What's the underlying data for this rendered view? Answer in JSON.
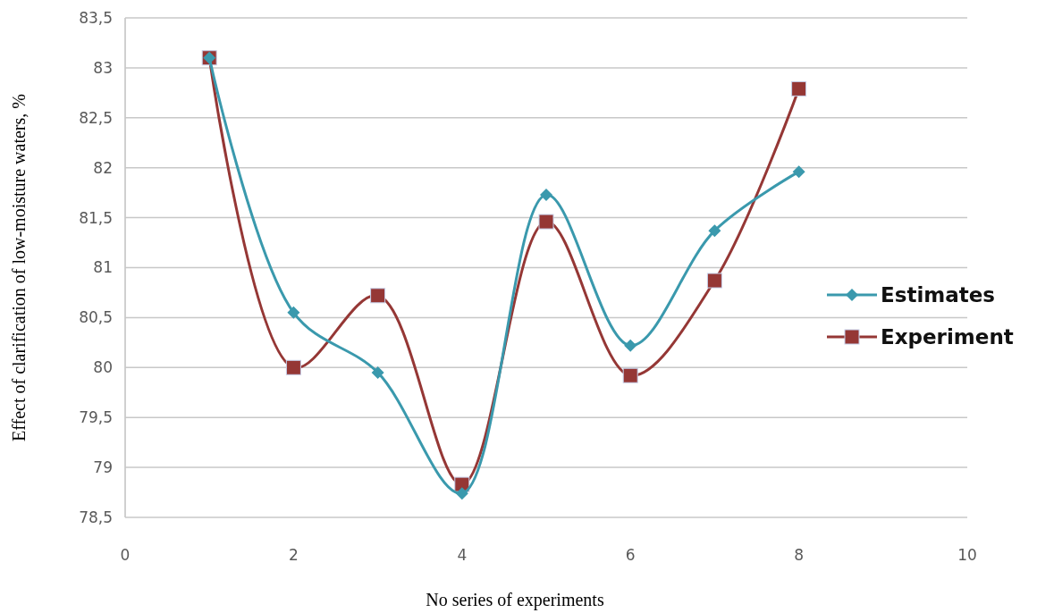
{
  "chart_data": {
    "type": "line",
    "xlabel": "No series of experiments",
    "ylabel": "Effect of clarification of low-moisture waters, %",
    "x": [
      1,
      2,
      3,
      4,
      5,
      6,
      7,
      8
    ],
    "series": [
      {
        "name": "Estimates",
        "color": "#3a99ad",
        "marker": "diamond",
        "values": [
          83.1,
          80.55,
          79.95,
          78.74,
          81.73,
          80.22,
          81.37,
          81.96
        ]
      },
      {
        "name": "Experiment",
        "color": "#953735",
        "marker": "square",
        "values": [
          83.1,
          80.0,
          80.72,
          78.83,
          81.46,
          79.92,
          80.87,
          82.79
        ]
      }
    ],
    "xlim": [
      0,
      10
    ],
    "xticks": [
      0,
      2,
      4,
      6,
      8,
      10
    ],
    "ylim": [
      78.5,
      83.5
    ],
    "yticks": [
      {
        "value": 78.5,
        "label": "78,5"
      },
      79,
      {
        "value": 79.5,
        "label": "79,5"
      },
      80,
      {
        "value": 80.5,
        "label": "80,5"
      },
      81,
      {
        "value": 81.5,
        "label": "81,5"
      },
      82,
      {
        "value": 82.5,
        "label": "82,5"
      },
      83,
      {
        "value": 83.5,
        "label": "83,5"
      }
    ],
    "grid": "y",
    "legend": "right"
  }
}
